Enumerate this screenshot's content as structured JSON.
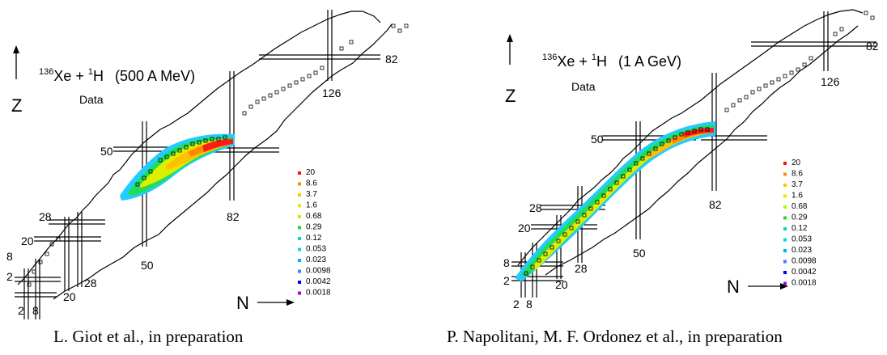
{
  "panels": [
    {
      "reaction": {
        "proj_mass": "136",
        "proj_sym": "Xe + ",
        "targ_mass": "1",
        "targ_sym": "H",
        "energy": "(500 A MeV)"
      },
      "subtitle": "Data",
      "axis_z": "Z",
      "axis_n": "N",
      "magic_labels": [
        "2",
        "8",
        "20",
        "28",
        "50",
        "82",
        "2",
        "8",
        "20",
        "28",
        "50",
        "82",
        "126"
      ],
      "legend": [
        "20",
        "8.6",
        "3.7",
        "1.6",
        "0.68",
        "0.29",
        "0.12",
        "0.053",
        "0.023",
        "0.0098",
        "0.0042",
        "0.0018"
      ],
      "caption": "L. Giot et al., in preparation"
    },
    {
      "reaction": {
        "proj_mass": "136",
        "proj_sym": "Xe + ",
        "targ_mass": "1",
        "targ_sym": "H",
        "energy": "(1 A GeV)"
      },
      "subtitle": "Data",
      "axis_z": "Z",
      "axis_n": "N",
      "magic_labels": [
        "2",
        "8",
        "20",
        "28",
        "50",
        "82",
        "2",
        "8",
        "20",
        "28",
        "50",
        "82",
        "126"
      ],
      "legend": [
        "20",
        "8.6",
        "3.7",
        "1.6",
        "0.68",
        "0.29",
        "0.12",
        "0.053",
        "0.023",
        "0.0098",
        "0.0042",
        "0.0018"
      ],
      "caption": "P. Napolitani, M. F. Ordonez et al., in preparation"
    }
  ],
  "legend_colors": [
    "#ff1010",
    "#ff8c00",
    "#ffc800",
    "#e8e800",
    "#aaff00",
    "#22dd22",
    "#00ddaa",
    "#00dddd",
    "#00aaff",
    "#3388ff",
    "#0000ff",
    "#aa00cc"
  ]
}
